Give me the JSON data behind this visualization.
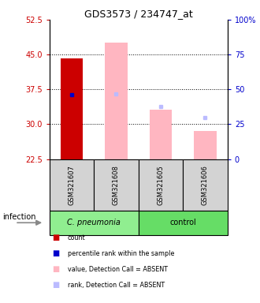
{
  "title": "GDS3573 / 234747_at",
  "samples": [
    "GSM321607",
    "GSM321608",
    "GSM321605",
    "GSM321606"
  ],
  "ylim_left": [
    22.5,
    52.5
  ],
  "ylim_right": [
    0,
    100
  ],
  "yticks_left": [
    22.5,
    30,
    37.5,
    45,
    52.5
  ],
  "yticks_right": [
    0,
    25,
    50,
    75,
    100
  ],
  "red_bar_top": [
    44.2,
    null,
    null,
    null
  ],
  "blue_dot_y": [
    36.3,
    null,
    null,
    null
  ],
  "pink_bar_top": [
    null,
    47.5,
    33.2,
    28.5
  ],
  "lavender_dot_y": [
    null,
    36.5,
    33.8,
    31.5
  ],
  "left_axis_color": "#CC0000",
  "right_axis_color": "#0000CC",
  "bar_width": 0.5,
  "sample_box_color": "#D3D3D3",
  "pneumonia_color": "#90EE90",
  "control_color": "#66DD66",
  "legend_items": [
    {
      "color": "#CC0000",
      "label": "count"
    },
    {
      "color": "#0000CC",
      "label": "percentile rank within the sample"
    },
    {
      "color": "#FFB6C1",
      "label": "value, Detection Call = ABSENT"
    },
    {
      "color": "#BBBBFF",
      "label": "rank, Detection Call = ABSENT"
    }
  ]
}
